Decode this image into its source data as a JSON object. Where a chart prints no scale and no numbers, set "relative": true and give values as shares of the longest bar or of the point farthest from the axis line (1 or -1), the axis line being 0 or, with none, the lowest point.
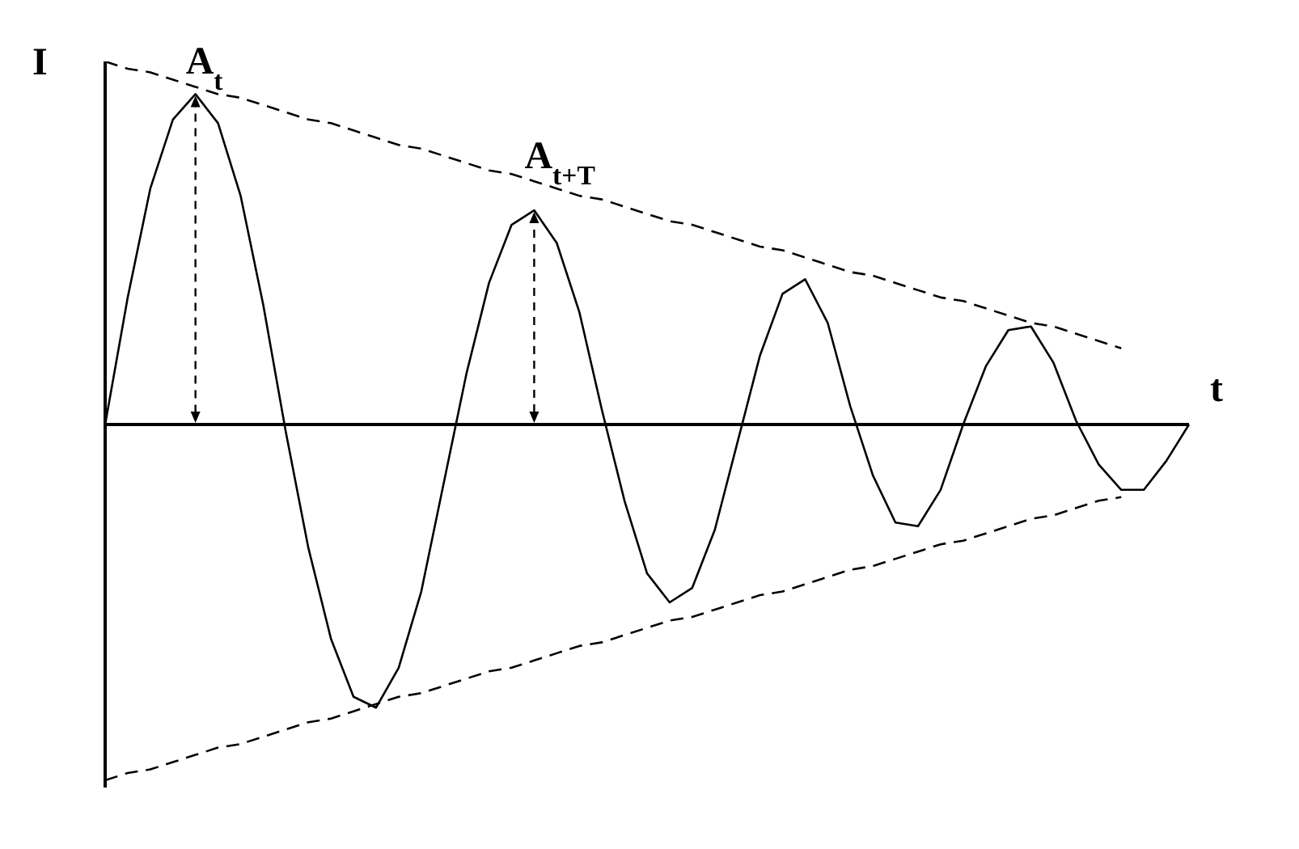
{
  "chart_data": {
    "type": "line",
    "relative": true,
    "xlabel": "t",
    "ylabel": "I",
    "marker": "none",
    "categories": [
      null,
      null,
      null,
      null,
      null,
      null,
      null,
      null,
      null,
      null,
      null,
      null,
      null,
      null,
      null,
      null,
      null,
      null,
      null,
      null,
      null,
      null,
      null,
      null,
      null,
      null,
      null,
      null,
      null,
      null,
      null,
      null,
      null,
      null,
      null,
      null,
      null,
      null,
      null,
      null,
      null,
      null,
      null,
      null,
      null,
      null,
      null,
      null,
      null
    ],
    "series": [
      {
        "color": "#000000",
        "line_style": "solid",
        "values": [
          0,
          0.35,
          0.65,
          0.84,
          0.91,
          0.83,
          0.63,
          0.33,
          -0.02,
          -0.34,
          -0.59,
          -0.75,
          -0.78,
          -0.67,
          -0.46,
          -0.16,
          0.14,
          0.39,
          0.55,
          0.59,
          0.5,
          0.31,
          0.04,
          -0.21,
          -0.41,
          -0.49,
          -0.45,
          -0.29,
          -0.05,
          0.19,
          0.36,
          0.4,
          0.28,
          0.05,
          -0.14,
          -0.27,
          -0.28,
          -0.18,
          0,
          0.16,
          0.26,
          0.27,
          0.17,
          0.01,
          -0.11,
          -0.18,
          -0.18,
          -0.1,
          0
        ]
      },
      {
        "color": "#000000",
        "line_style": "dashed",
        "values": [
          1,
          0.98,
          0.97,
          0.95,
          0.93,
          0.91,
          0.9,
          0.88,
          0.86,
          0.84,
          0.83,
          0.81,
          0.79,
          0.77,
          0.76,
          0.74,
          0.72,
          0.7,
          0.69,
          0.67,
          0.65,
          0.63,
          0.62,
          0.6,
          0.58,
          0.56,
          0.55,
          0.53,
          0.51,
          0.49,
          0.48,
          0.46,
          0.44,
          0.42,
          0.41,
          0.39,
          0.37,
          0.35,
          0.34,
          0.32,
          0.3,
          0.28,
          0.27,
          0.25,
          0.23,
          0.21,
          null,
          null,
          null
        ]
      },
      {
        "color": "#000000",
        "line_style": "dashed",
        "values": [
          -0.98,
          -0.96,
          -0.95,
          -0.93,
          -0.91,
          -0.89,
          -0.88,
          -0.86,
          -0.84,
          -0.82,
          -0.81,
          -0.79,
          -0.77,
          -0.75,
          -0.74,
          -0.72,
          -0.7,
          -0.68,
          -0.67,
          -0.65,
          -0.63,
          -0.61,
          -0.6,
          -0.58,
          -0.56,
          -0.54,
          -0.53,
          -0.51,
          -0.49,
          -0.47,
          -0.46,
          -0.44,
          -0.42,
          -0.4,
          -0.39,
          -0.37,
          -0.35,
          -0.33,
          -0.32,
          -0.3,
          -0.28,
          -0.26,
          -0.25,
          -0.23,
          -0.21,
          -0.2,
          null,
          null,
          null
        ]
      }
    ],
    "annotations": [
      "A$_{t}$",
      "A$_{t+T}$"
    ]
  }
}
